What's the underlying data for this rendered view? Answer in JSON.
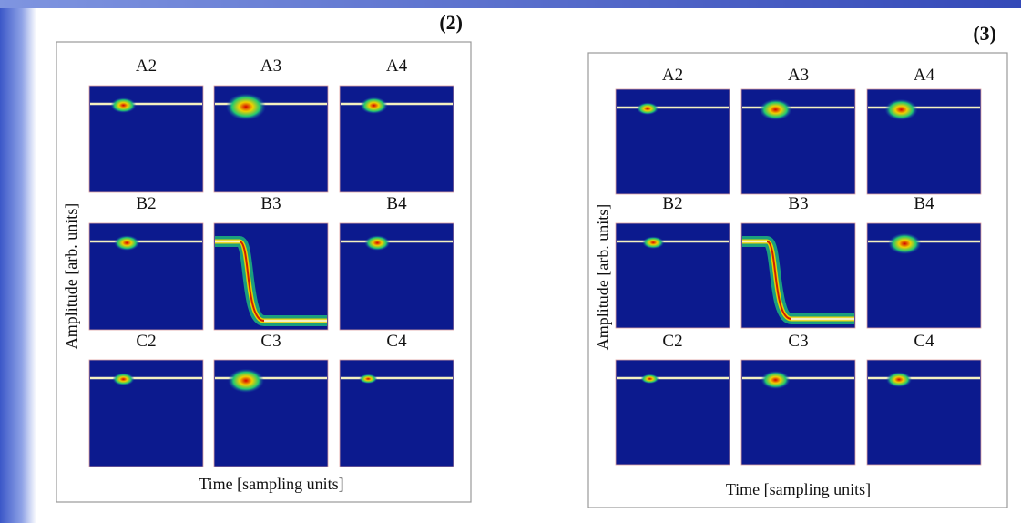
{
  "panels": [
    {
      "label": "(2)",
      "ylabel": "Amplitude [arb. units]",
      "xlabel": "Time [sampling units]",
      "cells": [
        "A2",
        "A3",
        "A4",
        "B2",
        "B3",
        "B4",
        "C2",
        "C3",
        "C4"
      ]
    },
    {
      "label": "(3)",
      "ylabel": "Amplitude [arb. units]",
      "xlabel": "Time [sampling units]",
      "cells": [
        "A2",
        "A3",
        "A4",
        "B2",
        "B3",
        "B4",
        "C2",
        "C3",
        "C4"
      ]
    }
  ]
}
